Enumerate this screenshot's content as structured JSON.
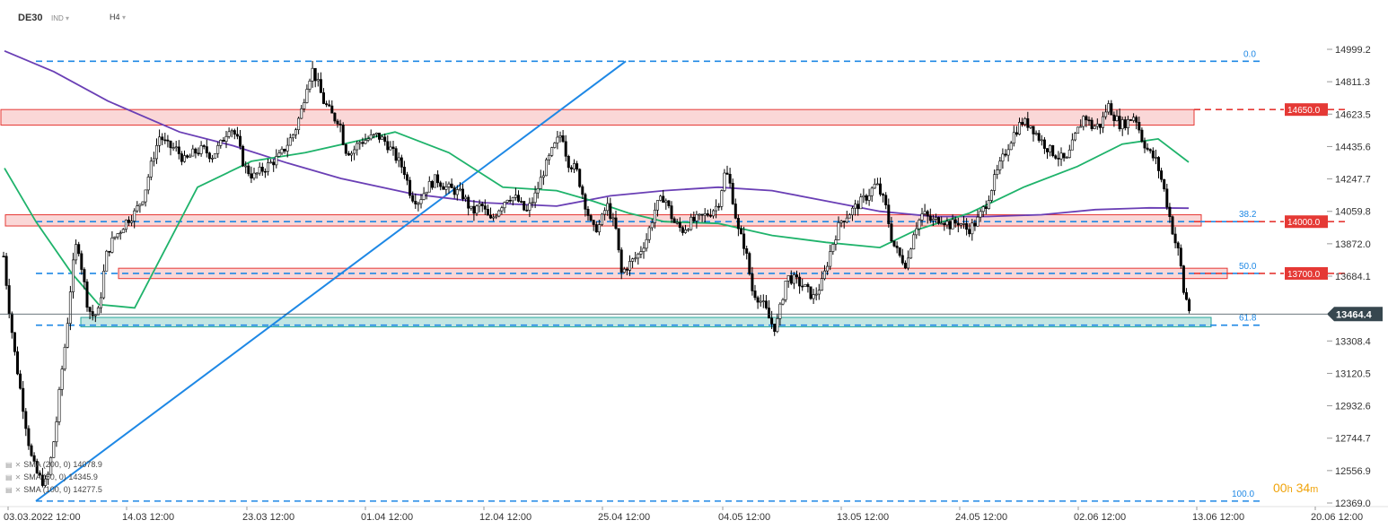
{
  "header": {
    "symbol": "DE30",
    "mode": "IND",
    "timeframe": "H4"
  },
  "countdown": {
    "hours": "00",
    "h": "h",
    "minutes": "34",
    "m": "m"
  },
  "indicators": [
    {
      "label": "SMA (200, 0)",
      "value": "14078.9",
      "color": "#6a3fb5"
    },
    {
      "label": "SMA (50, 0)",
      "value": "14345.9",
      "color": "#1fb36b"
    },
    {
      "label": "SMA (100, 0)",
      "value": "14277.5",
      "color": "#6a3fb5"
    }
  ],
  "colors": {
    "up": "#ffffff",
    "down": "#000000",
    "fib": "#1e88e5",
    "resistance": "#e53935",
    "support": "#26a69a",
    "price_line": "#37474f",
    "price_tag": "#37474f"
  },
  "chart_data": {
    "type": "candlestick",
    "y_axis": {
      "ticks": [
        "14999.2",
        "14811.3",
        "14623.5",
        "14435.6",
        "14247.7",
        "14059.8",
        "13872.0",
        "13684.1",
        "13308.4",
        "13120.5",
        "12932.6",
        "12744.7",
        "12556.9",
        "12369.0"
      ],
      "range": [
        12369.0,
        14999.2
      ]
    },
    "x_axis": {
      "ticks": [
        "03.03.2022 12:00",
        "14.03 12:00",
        "23.03 12:00",
        "01.04 12:00",
        "12.04 12:00",
        "25.04 12:00",
        "04.05 12:00",
        "13.05 12:00",
        "24.05 12:00",
        "02.06 12:00",
        "13.06 12:00",
        "20.06 12:00"
      ]
    },
    "current_price": "13464.4",
    "fibonacci": [
      {
        "label": "0.0",
        "price": 14930
      },
      {
        "label": "38.2",
        "price": 14000
      },
      {
        "label": "50.0",
        "price": 13700
      },
      {
        "label": "61.8",
        "price": 13400
      },
      {
        "label": "100.0",
        "price": 12380
      }
    ],
    "levels": [
      {
        "label": "14650.0",
        "price": 14650
      },
      {
        "label": "14000.0",
        "price": 14000
      },
      {
        "label": "13700.0",
        "price": 13700
      }
    ],
    "zones": [
      {
        "type": "resistance",
        "top": 14650,
        "bottom": 14560
      },
      {
        "type": "resistance",
        "top": 14040,
        "bottom": 13975
      },
      {
        "type": "resistance",
        "top": 13730,
        "bottom": 13670
      },
      {
        "type": "support",
        "top": 13445,
        "bottom": 13390
      }
    ],
    "trendline": [
      {
        "t": "03.03.2022",
        "price": 12380
      },
      {
        "t": "28.03",
        "price": 14930
      }
    ],
    "close_path": [
      [
        0,
        14000
      ],
      [
        5,
        13750
      ],
      [
        10,
        13500
      ],
      [
        16,
        13250
      ],
      [
        22,
        13050
      ],
      [
        28,
        12850
      ],
      [
        34,
        12650
      ],
      [
        40,
        12550
      ],
      [
        46,
        12500
      ],
      [
        52,
        12480
      ],
      [
        56,
        12600
      ],
      [
        62,
        12800
      ],
      [
        68,
        13100
      ],
      [
        74,
        13350
      ],
      [
        80,
        13700
      ],
      [
        86,
        13900
      ],
      [
        92,
        13700
      ],
      [
        98,
        13500
      ],
      [
        104,
        13450
      ],
      [
        110,
        13480
      ],
      [
        118,
        13800
      ],
      [
        126,
        13900
      ],
      [
        134,
        13950
      ],
      [
        140,
        14000
      ],
      [
        150,
        14050
      ],
      [
        160,
        14150
      ],
      [
        166,
        14280
      ],
      [
        172,
        14400
      ],
      [
        178,
        14500
      ],
      [
        186,
        14440
      ],
      [
        196,
        14420
      ],
      [
        206,
        14350
      ],
      [
        216,
        14400
      ],
      [
        226,
        14420
      ],
      [
        236,
        14380
      ],
      [
        246,
        14450
      ],
      [
        256,
        14560
      ],
      [
        264,
        14480
      ],
      [
        272,
        14320
      ],
      [
        282,
        14260
      ],
      [
        292,
        14300
      ],
      [
        302,
        14340
      ],
      [
        312,
        14380
      ],
      [
        320,
        14450
      ],
      [
        328,
        14520
      ],
      [
        336,
        14650
      ],
      [
        342,
        14800
      ],
      [
        348,
        14880
      ],
      [
        354,
        14800
      ],
      [
        360,
        14700
      ],
      [
        366,
        14650
      ],
      [
        372,
        14600
      ],
      [
        378,
        14590
      ],
      [
        384,
        14420
      ],
      [
        392,
        14400
      ],
      [
        400,
        14460
      ],
      [
        410,
        14480
      ],
      [
        420,
        14500
      ],
      [
        430,
        14460
      ],
      [
        440,
        14380
      ],
      [
        450,
        14300
      ],
      [
        458,
        14150
      ],
      [
        466,
        14120
      ],
      [
        476,
        14200
      ],
      [
        486,
        14250
      ],
      [
        496,
        14200
      ],
      [
        506,
        14180
      ],
      [
        516,
        14150
      ],
      [
        526,
        14050
      ],
      [
        536,
        14100
      ],
      [
        546,
        14000
      ],
      [
        556,
        14080
      ],
      [
        566,
        14150
      ],
      [
        576,
        14130
      ],
      [
        586,
        14050
      ],
      [
        596,
        14150
      ],
      [
        606,
        14300
      ],
      [
        616,
        14420
      ],
      [
        626,
        14520
      ],
      [
        632,
        14350
      ],
      [
        642,
        14300
      ],
      [
        652,
        14100
      ],
      [
        660,
        13950
      ],
      [
        668,
        13980
      ],
      [
        676,
        14100
      ],
      [
        686,
        13950
      ],
      [
        692,
        13700
      ],
      [
        700,
        13750
      ],
      [
        710,
        13800
      ],
      [
        720,
        13900
      ],
      [
        730,
        14080
      ],
      [
        740,
        14150
      ],
      [
        750,
        14000
      ],
      [
        760,
        13950
      ],
      [
        770,
        14000
      ],
      [
        780,
        14020
      ],
      [
        790,
        14050
      ],
      [
        800,
        14100
      ],
      [
        808,
        14300
      ],
      [
        814,
        14200
      ],
      [
        822,
        13950
      ],
      [
        830,
        13850
      ],
      [
        838,
        13600
      ],
      [
        846,
        13550
      ],
      [
        852,
        13500
      ],
      [
        858,
        13420
      ],
      [
        864,
        13380
      ],
      [
        870,
        13520
      ],
      [
        876,
        13680
      ],
      [
        886,
        13660
      ],
      [
        896,
        13620
      ],
      [
        906,
        13560
      ],
      [
        916,
        13650
      ],
      [
        926,
        13850
      ],
      [
        936,
        14000
      ],
      [
        946,
        14050
      ],
      [
        956,
        14100
      ],
      [
        966,
        14150
      ],
      [
        976,
        14220
      ],
      [
        986,
        14100
      ],
      [
        994,
        13880
      ],
      [
        1002,
        13800
      ],
      [
        1010,
        13750
      ],
      [
        1018,
        13950
      ],
      [
        1028,
        14050
      ],
      [
        1038,
        14000
      ],
      [
        1048,
        14020
      ],
      [
        1058,
        13980
      ],
      [
        1068,
        14000
      ],
      [
        1078,
        13950
      ],
      [
        1088,
        14000
      ],
      [
        1098,
        14100
      ],
      [
        1108,
        14250
      ],
      [
        1118,
        14380
      ],
      [
        1128,
        14500
      ],
      [
        1138,
        14580
      ],
      [
        1148,
        14560
      ],
      [
        1158,
        14480
      ],
      [
        1168,
        14420
      ],
      [
        1178,
        14380
      ],
      [
        1188,
        14350
      ],
      [
        1198,
        14500
      ],
      [
        1208,
        14620
      ],
      [
        1216,
        14550
      ],
      [
        1226,
        14560
      ],
      [
        1234,
        14680
      ],
      [
        1240,
        14620
      ],
      [
        1248,
        14560
      ],
      [
        1256,
        14580
      ],
      [
        1264,
        14620
      ],
      [
        1272,
        14480
      ],
      [
        1280,
        14400
      ],
      [
        1288,
        14350
      ],
      [
        1296,
        14200
      ],
      [
        1302,
        14050
      ],
      [
        1308,
        13900
      ],
      [
        1314,
        13800
      ],
      [
        1318,
        13600
      ],
      [
        1322,
        13540
      ],
      [
        1326,
        13464
      ]
    ],
    "sma200_path": [
      [
        5,
        14990
      ],
      [
        60,
        14870
      ],
      [
        120,
        14700
      ],
      [
        200,
        14520
      ],
      [
        260,
        14440
      ],
      [
        320,
        14340
      ],
      [
        380,
        14250
      ],
      [
        460,
        14160
      ],
      [
        540,
        14110
      ],
      [
        620,
        14090
      ],
      [
        680,
        14150
      ],
      [
        740,
        14180
      ],
      [
        800,
        14200
      ],
      [
        860,
        14180
      ],
      [
        920,
        14120
      ],
      [
        980,
        14060
      ],
      [
        1040,
        14030
      ],
      [
        1100,
        14030
      ],
      [
        1160,
        14040
      ],
      [
        1220,
        14070
      ],
      [
        1280,
        14080
      ],
      [
        1324,
        14078
      ]
    ],
    "sma50_path": [
      [
        5,
        14310
      ],
      [
        40,
        14000
      ],
      [
        80,
        13700
      ],
      [
        110,
        13520
      ],
      [
        150,
        13500
      ],
      [
        180,
        13800
      ],
      [
        220,
        14200
      ],
      [
        280,
        14350
      ],
      [
        340,
        14400
      ],
      [
        400,
        14470
      ],
      [
        440,
        14520
      ],
      [
        500,
        14400
      ],
      [
        560,
        14200
      ],
      [
        620,
        14180
      ],
      [
        660,
        14120
      ],
      [
        700,
        14050
      ],
      [
        740,
        14000
      ],
      [
        800,
        13990
      ],
      [
        860,
        13920
      ],
      [
        920,
        13880
      ],
      [
        980,
        13850
      ],
      [
        1020,
        13950
      ],
      [
        1080,
        14050
      ],
      [
        1140,
        14200
      ],
      [
        1200,
        14320
      ],
      [
        1250,
        14450
      ],
      [
        1290,
        14480
      ],
      [
        1324,
        14345
      ]
    ]
  }
}
